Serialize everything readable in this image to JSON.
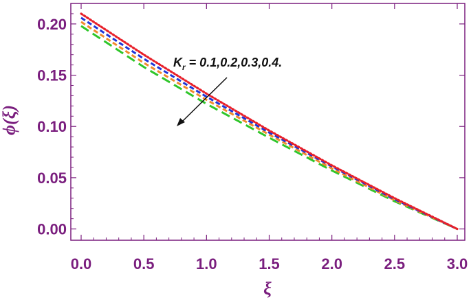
{
  "chart_data": {
    "type": "line",
    "xlabel": "ξ",
    "ylabel": "ϕ(ξ)",
    "xlim": [
      0,
      3.0
    ],
    "ylim": [
      -0.011,
      0.22
    ],
    "x_ticks": [
      "0.0",
      "0.5",
      "1.0",
      "1.5",
      "2.0",
      "2.5",
      "3.0"
    ],
    "y_ticks": [
      "0.00",
      "0.05",
      "0.10",
      "0.15",
      "0.20"
    ],
    "grid": false,
    "frame_color": "#7a1e7e",
    "label_color": "#7a1e7e",
    "annotation": {
      "symbol": "K",
      "subscript": "r",
      "text": " = 0.1,0.2,0.3,0.4.",
      "arrow_direction": "down-left"
    },
    "x": [
      0,
      0.5,
      1.0,
      1.5,
      2.0,
      2.5,
      3.0
    ],
    "series": [
      {
        "style": "dotted",
        "color": "#e8202a",
        "values": [
          0.21,
          0.17,
          0.132,
          0.096,
          0.062,
          0.03,
          0.0
        ]
      },
      {
        "style": "dashed",
        "color": "#1e35d8",
        "values": [
          0.206,
          0.166,
          0.129,
          0.094,
          0.061,
          0.029,
          0.0
        ]
      },
      {
        "style": "dashed",
        "color": "#f08a2c",
        "values": [
          0.202,
          0.162,
          0.126,
          0.092,
          0.059,
          0.028,
          0.0
        ]
      },
      {
        "style": "long-dashed",
        "color": "#2fc62a",
        "values": [
          0.198,
          0.158,
          0.122,
          0.089,
          0.057,
          0.027,
          0.0
        ]
      }
    ]
  }
}
